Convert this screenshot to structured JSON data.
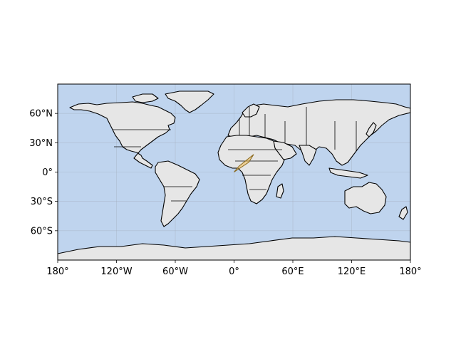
{
  "map": {
    "projection": "PlateCarree",
    "extent": {
      "lon": [
        -180,
        180
      ],
      "lat": [
        -90,
        90
      ]
    },
    "colors": {
      "ocean": "#bfd4ee",
      "land": "#e6e6e6",
      "coastline": "#000000",
      "highlight_fill": "#f2b845",
      "highlight_edge": "#8a6a20"
    },
    "gridlines": true,
    "x_ticks": [
      {
        "value": -180,
        "label": "180°"
      },
      {
        "value": -120,
        "label": "120°W"
      },
      {
        "value": -60,
        "label": "60°W"
      },
      {
        "value": 0,
        "label": "0°"
      },
      {
        "value": 60,
        "label": "60°E"
      },
      {
        "value": 120,
        "label": "120°E"
      },
      {
        "value": 180,
        "label": "180°"
      }
    ],
    "y_ticks": [
      {
        "value": 60,
        "label": "60°N"
      },
      {
        "value": 30,
        "label": "30°N"
      },
      {
        "value": 0,
        "label": "0°"
      },
      {
        "value": -30,
        "label": "30°S"
      },
      {
        "value": -60,
        "label": "60°S"
      }
    ],
    "highlight_region": {
      "polygon_lonlat": [
        [
          0,
          0
        ],
        [
          15,
          10
        ],
        [
          20,
          18
        ],
        [
          5,
          6
        ]
      ],
      "opacity": 0.5
    }
  }
}
